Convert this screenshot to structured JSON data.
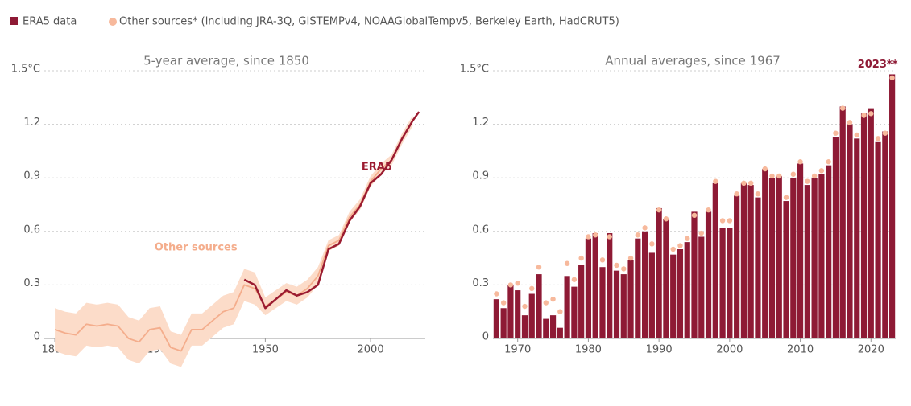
{
  "chart_data": [
    {
      "type": "line",
      "title": "5-year average, since 1850",
      "xlim": [
        1845,
        2026
      ],
      "xticks": [
        1850,
        1900,
        1950,
        2000
      ],
      "ylim": [
        -0.35,
        1.5
      ],
      "yticks": [
        0,
        0.3,
        0.6,
        0.9,
        1.2,
        {
          "value": 1.5,
          "label": "1.5°C"
        }
      ],
      "grid": true,
      "band": {
        "color": "#fcdcc9",
        "x": [
          1850,
          1855,
          1860,
          1865,
          1870,
          1875,
          1880,
          1885,
          1890,
          1895,
          1900,
          1905,
          1910,
          1915,
          1920,
          1925,
          1930,
          1935,
          1940,
          1945,
          1950,
          1955,
          1960,
          1965,
          1970,
          1975,
          1980,
          1985,
          1990,
          1995,
          2000,
          2005,
          2010,
          2015,
          2020
        ],
        "lower": [
          -0.07,
          -0.09,
          -0.1,
          -0.04,
          -0.05,
          -0.04,
          -0.05,
          -0.12,
          -0.14,
          -0.07,
          -0.06,
          -0.14,
          -0.16,
          -0.04,
          -0.04,
          0.01,
          0.06,
          0.08,
          0.21,
          0.19,
          0.13,
          0.17,
          0.21,
          0.19,
          0.23,
          0.3,
          0.49,
          0.52,
          0.65,
          0.72,
          0.85,
          0.92,
          0.97,
          1.09,
          1.19
        ],
        "upper": [
          0.17,
          0.15,
          0.14,
          0.2,
          0.19,
          0.2,
          0.19,
          0.12,
          0.1,
          0.17,
          0.18,
          0.04,
          0.02,
          0.14,
          0.14,
          0.19,
          0.24,
          0.26,
          0.39,
          0.37,
          0.23,
          0.27,
          0.31,
          0.29,
          0.33,
          0.4,
          0.55,
          0.58,
          0.71,
          0.78,
          0.91,
          0.98,
          1.03,
          1.15,
          1.25
        ]
      },
      "series": [
        {
          "name": "Other sources",
          "color": "#f4ad8c",
          "x": [
            1850,
            1855,
            1860,
            1865,
            1870,
            1875,
            1880,
            1885,
            1890,
            1895,
            1900,
            1905,
            1910,
            1915,
            1920,
            1925,
            1930,
            1935,
            1940,
            1945,
            1950,
            1955,
            1960,
            1965,
            1970,
            1975,
            1980,
            1985,
            1990,
            1995,
            2000,
            2005,
            2010,
            2015,
            2020
          ],
          "values": [
            0.05,
            0.03,
            0.02,
            0.08,
            0.07,
            0.08,
            0.07,
            0.0,
            -0.02,
            0.05,
            0.06,
            -0.05,
            -0.07,
            0.05,
            0.05,
            0.1,
            0.15,
            0.17,
            0.3,
            0.28,
            0.18,
            0.22,
            0.26,
            0.24,
            0.28,
            0.35,
            0.52,
            0.55,
            0.68,
            0.75,
            0.88,
            0.95,
            1.0,
            1.12,
            1.22
          ]
        },
        {
          "name": "ERA5",
          "color": "#9b1b30",
          "x": [
            1940,
            1945,
            1950,
            1955,
            1960,
            1965,
            1970,
            1975,
            1980,
            1985,
            1990,
            1995,
            2000,
            2005,
            2010,
            2015,
            2020,
            2023
          ],
          "values": [
            0.33,
            0.3,
            0.17,
            0.22,
            0.27,
            0.24,
            0.26,
            0.3,
            0.5,
            0.53,
            0.66,
            0.74,
            0.87,
            0.92,
            1.0,
            1.12,
            1.22,
            1.27
          ]
        }
      ]
    },
    {
      "type": "bar",
      "title": "Annual averages, since 1967",
      "xlim": [
        1966.5,
        2023.5
      ],
      "xticks": [
        1970,
        1980,
        1990,
        2000,
        2010,
        2020
      ],
      "ylim": [
        -0.35,
        1.5
      ],
      "yticks": [
        0,
        0.3,
        0.6,
        0.9,
        1.2,
        {
          "value": 1.5,
          "label": "1.5°C"
        }
      ],
      "grid": true,
      "annotation": "2023**",
      "x": [
        1967,
        1968,
        1969,
        1970,
        1971,
        1972,
        1973,
        1974,
        1975,
        1976,
        1977,
        1978,
        1979,
        1980,
        1981,
        1982,
        1983,
        1984,
        1985,
        1986,
        1987,
        1988,
        1989,
        1990,
        1991,
        1992,
        1993,
        1994,
        1995,
        1996,
        1997,
        1998,
        1999,
        2000,
        2001,
        2002,
        2003,
        2004,
        2005,
        2006,
        2007,
        2008,
        2009,
        2010,
        2011,
        2012,
        2013,
        2014,
        2015,
        2016,
        2017,
        2018,
        2019,
        2020,
        2021,
        2022,
        2023
      ],
      "series": [
        {
          "name": "ERA5 data",
          "color": "#8e1a35",
          "values": [
            0.22,
            0.17,
            0.3,
            0.27,
            0.13,
            0.25,
            0.36,
            0.11,
            0.13,
            0.06,
            0.35,
            0.29,
            0.41,
            0.56,
            0.59,
            0.4,
            0.59,
            0.38,
            0.36,
            0.44,
            0.56,
            0.6,
            0.48,
            0.73,
            0.67,
            0.47,
            0.5,
            0.54,
            0.71,
            0.57,
            0.71,
            0.87,
            0.62,
            0.62,
            0.8,
            0.87,
            0.86,
            0.79,
            0.95,
            0.9,
            0.91,
            0.77,
            0.9,
            0.98,
            0.86,
            0.9,
            0.92,
            0.97,
            1.13,
            1.3,
            1.2,
            1.12,
            1.26,
            1.29,
            1.1,
            1.16,
            1.48
          ]
        },
        {
          "name": "Other sources* (including JRA-3Q, GISTEMPv4, NOAAGlobalTempv5, Berkeley Earth, HadCRUT5)",
          "color": "#f7b99c",
          "values": [
            0.25,
            0.2,
            0.3,
            0.31,
            0.18,
            0.28,
            0.4,
            0.2,
            0.22,
            0.15,
            0.42,
            0.33,
            0.45,
            0.57,
            0.58,
            0.44,
            0.57,
            0.41,
            0.39,
            0.45,
            0.58,
            0.62,
            0.53,
            0.72,
            0.67,
            0.5,
            0.52,
            0.56,
            0.69,
            0.59,
            0.72,
            0.88,
            0.66,
            0.66,
            0.81,
            0.87,
            0.87,
            0.81,
            0.95,
            0.91,
            0.91,
            0.79,
            0.92,
            0.99,
            0.88,
            0.91,
            0.94,
            0.99,
            1.15,
            1.29,
            1.21,
            1.14,
            1.25,
            1.26,
            1.12,
            1.15,
            1.46
          ]
        }
      ]
    }
  ]
}
